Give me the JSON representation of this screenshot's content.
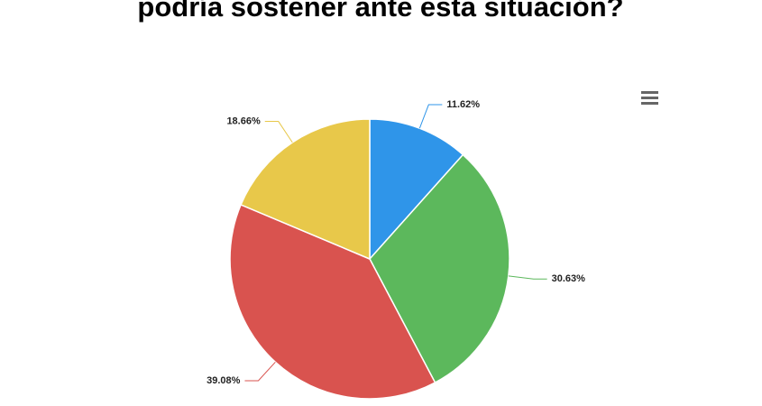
{
  "chart_data": {
    "type": "pie",
    "title": "podría sostener ante esta situación?",
    "values": [
      11.62,
      30.63,
      39.08,
      18.66
    ],
    "value_labels": [
      "11.62%",
      "30.63%",
      "39.08%",
      "18.66%"
    ],
    "colors": [
      "#2f95e9",
      "#5cb85c",
      "#d9534f",
      "#e8c84a"
    ]
  }
}
